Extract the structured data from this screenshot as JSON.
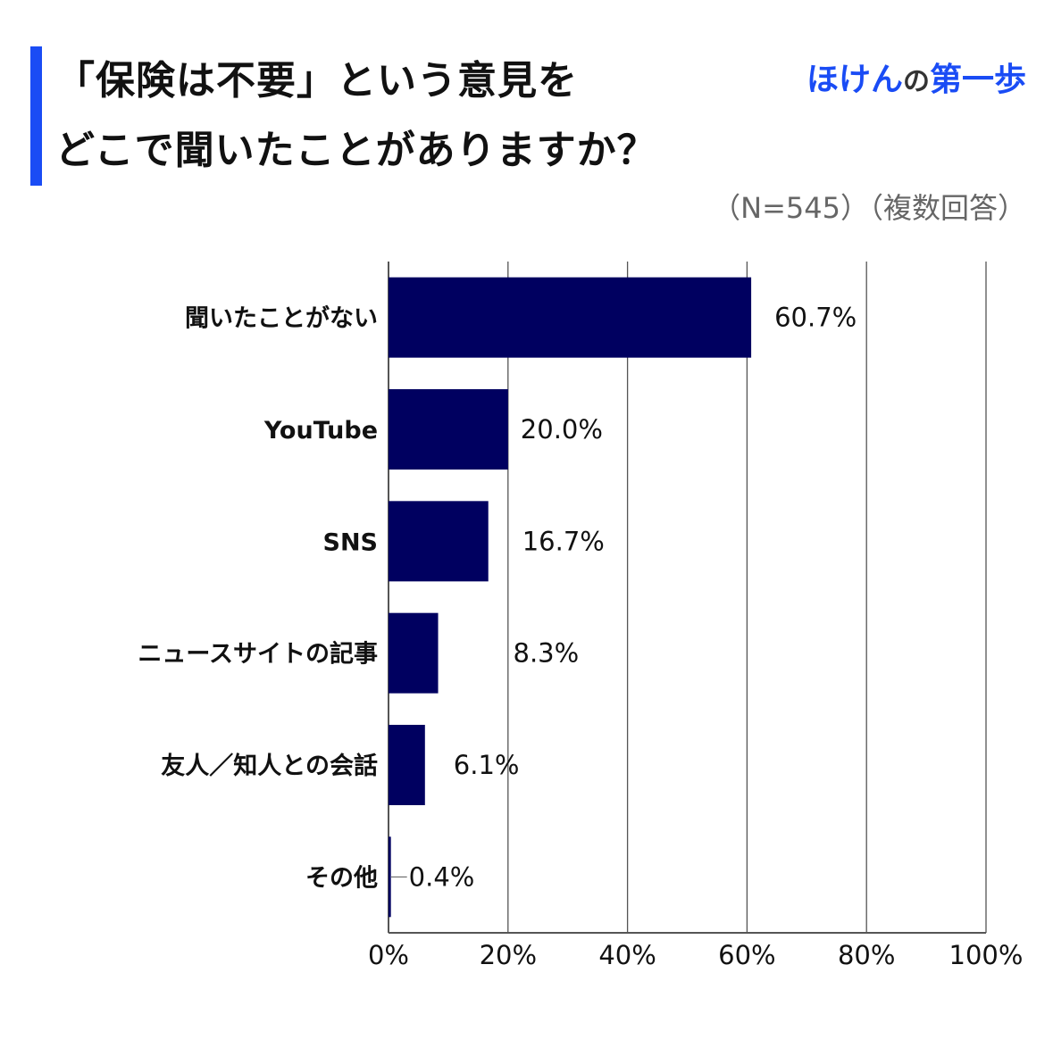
{
  "header": {
    "title_line1": "「保険は不要」という意見を",
    "title_line2": "どこで聞いたことがありますか？",
    "logo_part1": "ほけん",
    "logo_part2": "の",
    "logo_part3": "第一歩",
    "note": "（N=545）（複数回答）"
  },
  "chart_data": {
    "type": "bar",
    "orientation": "horizontal",
    "categories": [
      "聞いたことがない",
      "YouTube",
      "SNS",
      "ニュースサイトの記事",
      "友人／知人との会話",
      "その他"
    ],
    "values": [
      60.7,
      20.0,
      16.7,
      8.3,
      6.1,
      0.4
    ],
    "value_labels": [
      "60.7%",
      "20.0%",
      "16.7%",
      "8.3%",
      "6.1%",
      "0.4%"
    ],
    "xlim": [
      0,
      100
    ],
    "xticks": [
      0,
      20,
      40,
      60,
      80,
      100
    ],
    "xtick_labels": [
      "0%",
      "20%",
      "40%",
      "60%",
      "80%",
      "100%"
    ],
    "grid": true,
    "bar_color": "#000060",
    "accent_color": "#1a4cf5"
  }
}
